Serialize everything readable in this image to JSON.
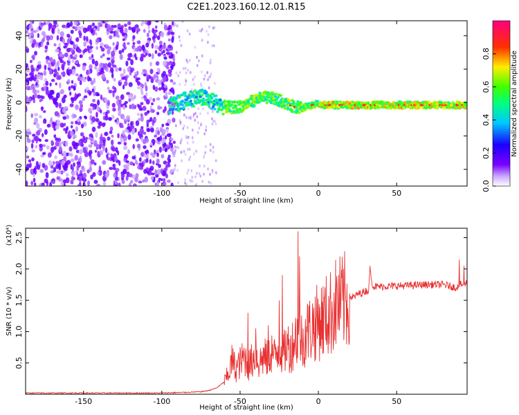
{
  "title": "C2E1.2023.160.12.01.R15",
  "colors": {
    "snr_line": "#e83030",
    "axis": "#000000",
    "background": "#ffffff"
  },
  "chart_data": [
    {
      "type": "heatmap",
      "xlabel": "Height of straight line (km)",
      "ylabel": "Frequency (Hz)",
      "xlim": [
        -187,
        95
      ],
      "ylim": [
        -50,
        49
      ],
      "xticks": [
        -150,
        -100,
        -50,
        0,
        50
      ],
      "yticks": [
        -40,
        -20,
        0,
        20,
        40
      ],
      "xtick_labels": [
        "-150",
        "-100",
        "-50",
        "0",
        "50"
      ],
      "ytick_labels": [
        "-40",
        "-20",
        "0",
        "20",
        "40"
      ],
      "colorbar": {
        "label": "Normalized spectral amplitude",
        "range": [
          0,
          1
        ],
        "ticks": [
          "0.0",
          "0.2",
          "0.4",
          "0.6",
          "0.8"
        ],
        "colormap": "rainbow (white-violet-blue-cyan-green-yellow-red-magenta)"
      },
      "features": [
        {
          "region": "noise",
          "x_range": [
            -187,
            -92
          ],
          "freq_range": [
            -50,
            49
          ],
          "amplitude": 0.05
        },
        {
          "region": "sparse noise",
          "x_range": [
            -92,
            -65
          ],
          "freq_range": [
            -50,
            49
          ],
          "amplitude": 0.02
        },
        {
          "region": "signal",
          "x_range": [
            -95,
            95
          ],
          "freq_center": 0,
          "amplitude": 0.5
        },
        {
          "region": "strong signal",
          "x_range": [
            0,
            95
          ],
          "freq_center": -1.5,
          "amplitude": 0.6
        }
      ]
    },
    {
      "type": "line",
      "xlabel": "Height of straight line (km)",
      "ylabel": "SNR (10 * v/v)",
      "y_multiplier": "(x10⁴)",
      "xlim": [
        -187,
        95
      ],
      "ylim": [
        0,
        2.65
      ],
      "xticks": [
        -150,
        -100,
        -50,
        0,
        50
      ],
      "yticks": [
        0.5,
        1.0,
        1.5,
        2.0,
        2.5
      ],
      "xtick_labels": [
        "-150",
        "-100",
        "-50",
        "0",
        "50"
      ],
      "ytick_labels": [
        "0.5",
        "1.0",
        "1.5",
        "2.0",
        "2.5"
      ],
      "series": [
        {
          "x": [
            -187,
            -150,
            -100,
            -85,
            -75,
            -70,
            -65,
            -60,
            -57,
            -55,
            -53,
            -50,
            -47,
            -45,
            -42,
            -40,
            -38,
            -35,
            -32,
            -30,
            -28,
            -25,
            -22,
            -20,
            -18,
            -15,
            -13,
            -12,
            -10,
            -8,
            -5,
            -3,
            0,
            3,
            5,
            8,
            10,
            12,
            15,
            18,
            20,
            23,
            25,
            28,
            30,
            32,
            33,
            35,
            40,
            50,
            60,
            70,
            80,
            85,
            88,
            90,
            92,
            95
          ],
          "y": [
            0.02,
            0.02,
            0.02,
            0.03,
            0.04,
            0.06,
            0.1,
            0.2,
            0.35,
            0.55,
            0.4,
            0.5,
            0.6,
            0.45,
            0.55,
            0.65,
            0.5,
            0.6,
            0.55,
            0.7,
            0.6,
            0.75,
            0.65,
            0.8,
            0.7,
            0.9,
            0.95,
            1.0,
            0.8,
            1.0,
            1.05,
            1.1,
            1.15,
            1.2,
            1.25,
            1.3,
            1.4,
            1.45,
            1.45,
            1.5,
            1.55,
            1.55,
            1.6,
            1.62,
            1.65,
            1.65,
            1.95,
            1.72,
            1.72,
            1.73,
            1.74,
            1.75,
            1.75,
            1.72,
            1.7,
            1.75,
            1.75,
            1.78
          ]
        }
      ],
      "spikes": [
        {
          "x": -45,
          "y": 1.3
        },
        {
          "x": -40,
          "y": 1.05
        },
        {
          "x": -32,
          "y": 1.1
        },
        {
          "x": -25,
          "y": 1.5
        },
        {
          "x": -23,
          "y": 1.9
        },
        {
          "x": -13,
          "y": 2.6
        },
        {
          "x": -12,
          "y": 2.2
        },
        {
          "x": 33,
          "y": 2.05
        },
        {
          "x": 90,
          "y": 2.15
        },
        {
          "x": 93,
          "y": 2.05
        }
      ]
    }
  ]
}
